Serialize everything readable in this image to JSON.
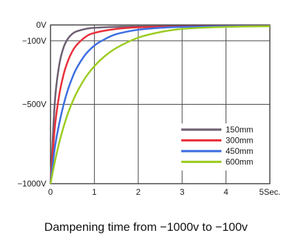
{
  "chart_data": {
    "type": "line",
    "title": "",
    "xlabel": "Dampening time from −1000v to −100v",
    "ylabel": "",
    "xlim": [
      0,
      5
    ],
    "ylim": [
      -1000,
      0
    ],
    "x_ticks": [
      0,
      1,
      2,
      3,
      4,
      5
    ],
    "x_tick_labels": [
      "0",
      "1",
      "2",
      "3",
      "4",
      "5Sec."
    ],
    "y_ticks": [
      0,
      -100,
      -500,
      -1000
    ],
    "y_tick_labels": [
      "0V",
      "−100V",
      "−500V",
      "−1000V"
    ],
    "grid": true,
    "legend_position": "bottom-right",
    "series": [
      {
        "name": "150mm",
        "color": "#6e5f72",
        "x": [
          0,
          0.1,
          0.2,
          0.3,
          0.4,
          0.5,
          0.6,
          0.8,
          1.0,
          1.5,
          2.0,
          3.0,
          4.0,
          5.0
        ],
        "y": [
          -1000,
          -480,
          -250,
          -140,
          -85,
          -55,
          -40,
          -25,
          -18,
          -12,
          -10,
          -8,
          -7,
          -7
        ]
      },
      {
        "name": "300mm",
        "color": "#e8313a",
        "x": [
          0,
          0.1,
          0.2,
          0.3,
          0.4,
          0.5,
          0.6,
          0.8,
          1.0,
          1.5,
          2.0,
          3.0,
          4.0,
          5.0
        ],
        "y": [
          -1000,
          -640,
          -440,
          -310,
          -225,
          -165,
          -125,
          -75,
          -50,
          -25,
          -15,
          -9,
          -7,
          -7
        ]
      },
      {
        "name": "450mm",
        "color": "#3d6fe0",
        "x": [
          0,
          0.1,
          0.2,
          0.3,
          0.4,
          0.5,
          0.6,
          0.8,
          1.0,
          1.2,
          1.5,
          2.0,
          2.5,
          3.0,
          4.0,
          5.0
        ],
        "y": [
          -1000,
          -770,
          -620,
          -500,
          -405,
          -330,
          -270,
          -185,
          -130,
          -95,
          -58,
          -30,
          -18,
          -12,
          -8,
          -7
        ]
      },
      {
        "name": "600mm",
        "color": "#9ccc22",
        "x": [
          0,
          0.1,
          0.2,
          0.3,
          0.4,
          0.5,
          0.6,
          0.8,
          1.0,
          1.2,
          1.5,
          2.0,
          2.5,
          3.0,
          4.0,
          5.0
        ],
        "y": [
          -1000,
          -860,
          -740,
          -640,
          -555,
          -485,
          -425,
          -330,
          -260,
          -205,
          -145,
          -80,
          -45,
          -25,
          -12,
          -8
        ]
      }
    ]
  }
}
